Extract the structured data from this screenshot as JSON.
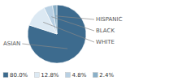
{
  "chart_data": {
    "type": "pie",
    "categories": [
      "ASIAN",
      "WHITE",
      "BLACK",
      "HISPANIC"
    ],
    "values": [
      80.0,
      12.8,
      4.8,
      2.4
    ],
    "value_labels": [
      "80.0%",
      "12.8%",
      "4.8%",
      "2.4%"
    ],
    "colors": [
      "#3d6b8e",
      "#dce9f3",
      "#b8d0e3",
      "#8ab0c8"
    ],
    "legend": "lower left"
  }
}
